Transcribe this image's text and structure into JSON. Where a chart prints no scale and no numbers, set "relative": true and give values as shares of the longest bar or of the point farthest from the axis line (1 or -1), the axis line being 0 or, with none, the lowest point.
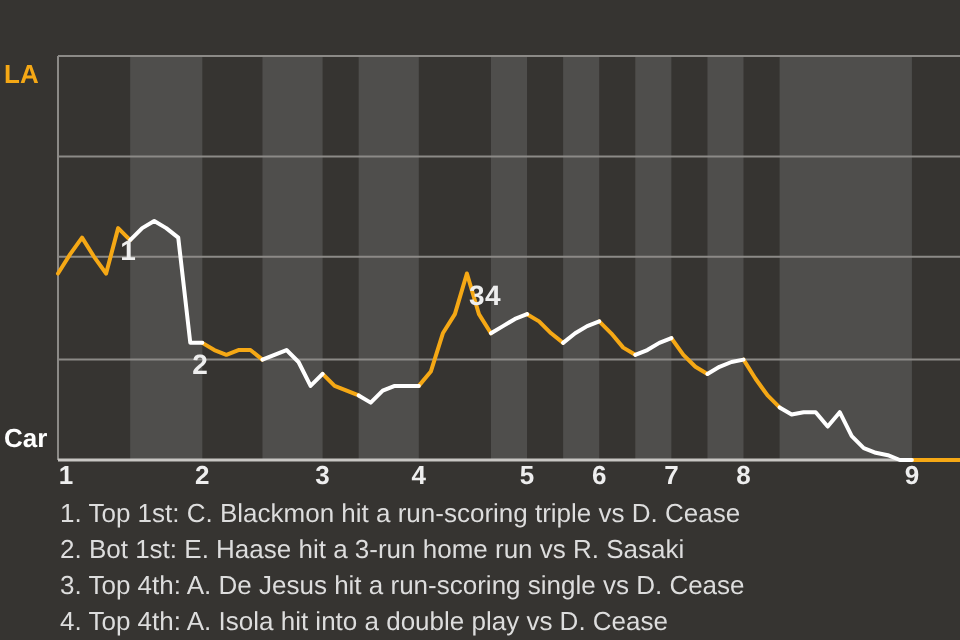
{
  "chart_data": {
    "type": "line",
    "relative": true,
    "categories": [
      "1",
      null,
      null,
      null,
      null,
      null,
      null,
      null,
      null,
      null,
      null,
      null,
      "2",
      null,
      null,
      null,
      null,
      null,
      null,
      null,
      null,
      null,
      "3",
      null,
      null,
      null,
      null,
      null,
      null,
      null,
      "4",
      null,
      null,
      null,
      null,
      null,
      null,
      null,
      null,
      "5",
      null,
      null,
      null,
      null,
      null,
      "6",
      null,
      null,
      null,
      null,
      null,
      "7",
      null,
      null,
      null,
      null,
      null,
      "8",
      null,
      null,
      null,
      null,
      null,
      null,
      null,
      null,
      null,
      null,
      null,
      null,
      null,
      "9",
      null,
      null,
      null,
      null
    ],
    "marker": "none",
    "line_style": "solid",
    "ref_lines": [
      {
        "axis": "y",
        "value": 0.42,
        "color": "#8c8a87"
      },
      {
        "axis": "y",
        "value": 0.85,
        "color": "#8c8a87"
      },
      {
        "axis": "y",
        "value": 1.27,
        "color": "#8c8a87"
      },
      {
        "axis": "y",
        "value": 1.69,
        "color": "#8c8a87"
      }
    ],
    "series": [
      {
        "color": "#f5a815",
        "values": [
          0.78,
          0.86,
          0.93,
          0.85,
          0.78,
          0.97,
          0.92,
          null,
          null,
          null,
          null,
          null,
          0.49,
          0.46,
          0.44,
          0.46,
          0.46,
          0.42,
          null,
          null,
          null,
          null,
          0.36,
          0.31,
          0.29,
          0.27,
          null,
          null,
          null,
          null,
          0.31,
          0.37,
          0.53,
          0.61,
          0.78,
          0.61,
          0.53,
          null,
          null,
          0.61,
          0.58,
          0.53,
          0.49,
          null,
          null,
          0.58,
          0.53,
          0.47,
          0.44,
          null,
          null,
          0.51,
          0.44,
          0.39,
          0.36,
          null,
          null,
          0.42,
          0.34,
          0.27,
          0.22,
          null,
          null,
          null,
          null,
          null,
          null,
          null,
          null,
          null,
          null,
          0,
          0,
          0,
          0,
          0
        ]
      },
      {
        "color": "#ffffff",
        "values": [
          null,
          null,
          null,
          null,
          null,
          null,
          0.92,
          0.97,
          1,
          0.97,
          0.93,
          0.49,
          0.49,
          null,
          null,
          null,
          null,
          0.42,
          0.44,
          0.46,
          0.41,
          0.31,
          0.36,
          null,
          null,
          0.27,
          0.24,
          0.29,
          0.31,
          0.31,
          0.31,
          null,
          null,
          null,
          null,
          null,
          0.53,
          0.56,
          0.59,
          0.61,
          null,
          null,
          0.49,
          0.53,
          0.56,
          0.58,
          null,
          null,
          0.44,
          0.46,
          0.49,
          0.51,
          null,
          null,
          0.36,
          0.39,
          0.41,
          0.42,
          null,
          null,
          0.22,
          0.19,
          0.2,
          0.2,
          0.14,
          0.2,
          0.1,
          0.05,
          0.03,
          0.02,
          0,
          0,
          null,
          null,
          null,
          null
        ]
      }
    ],
    "annotations": [
      {
        "text": "1",
        "y": 0.97
      },
      {
        "text": "2",
        "y": 0.49
      },
      {
        "text": "3",
        "y": 0.78
      },
      {
        "text": "4",
        "y": 0.61
      },
      "LA",
      "Car",
      "1. Top 1st: C. Blackmon hit a run-scoring triple vs D. Cease",
      "2. Bot 1st: E. Haase hit a 3-run home run vs R. Sasaki",
      "3. Top 4th: A. De Jesus hit a run-scoring single vs D. Cease",
      "4. Top 4th: A. Isola hit into a double play vs D. Cease"
    ]
  }
}
